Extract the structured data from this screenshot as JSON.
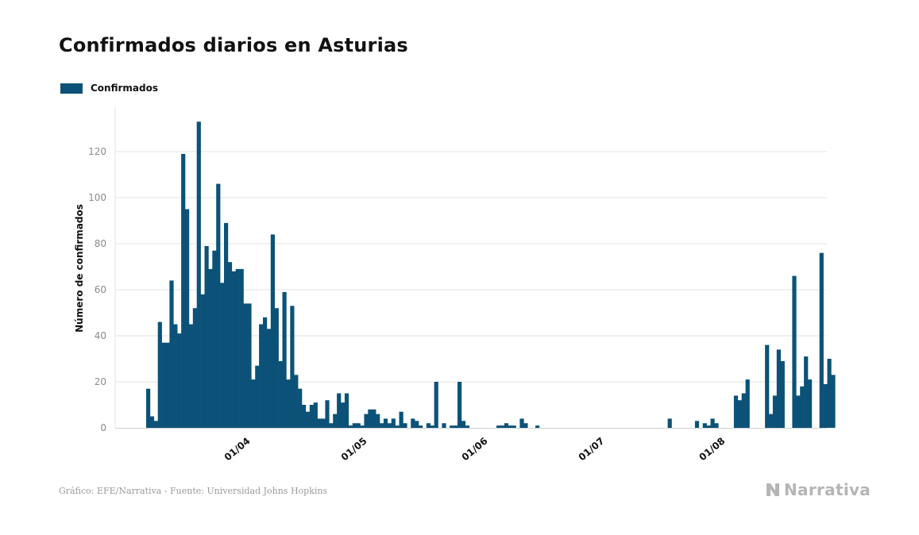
{
  "header": {
    "title": "Confirmados diarios en Asturias"
  },
  "footer": {
    "source": "Gráfico: EFE/Narrativa - Fuente: Universidad Johns Hopkins",
    "brand": "Narrativa"
  },
  "colors": {
    "bar": "#0c5278",
    "grid": "#e3e3e3",
    "axis_tick": "#8a8a8a",
    "brand": "#b5b5b5"
  },
  "chart_data": {
    "type": "bar",
    "title": "Confirmados diarios en Asturias",
    "xlabel": "",
    "ylabel": "Número de confirmados",
    "ylim": [
      0,
      140
    ],
    "yticks": [
      0,
      20,
      40,
      60,
      80,
      100,
      120
    ],
    "grid": true,
    "legend": {
      "placement": "top-left",
      "entries": [
        "Confirmados"
      ]
    },
    "x_ticks": [
      {
        "label": "01/04",
        "date": "2020-04-01"
      },
      {
        "label": "01/05",
        "date": "2020-05-01"
      },
      {
        "label": "01/06",
        "date": "2020-06-01"
      },
      {
        "label": "01/07",
        "date": "2020-07-01"
      },
      {
        "label": "01/08",
        "date": "2020-08-01"
      }
    ],
    "series": [
      {
        "name": "Confirmados",
        "start_date": "2020-03-08",
        "values": [
          17,
          5,
          3,
          46,
          37,
          37,
          64,
          45,
          41,
          119,
          95,
          45,
          52,
          133,
          58,
          79,
          69,
          77,
          106,
          63,
          89,
          72,
          68,
          69,
          69,
          54,
          54,
          21,
          27,
          45,
          48,
          43,
          84,
          52,
          29,
          59,
          21,
          53,
          23,
          17,
          10,
          7,
          10,
          11,
          4,
          4,
          12,
          2,
          6,
          15,
          11,
          15,
          1,
          2,
          2,
          1,
          6,
          8,
          8,
          6,
          2,
          4,
          2,
          4,
          1,
          7,
          2,
          0,
          4,
          3,
          1,
          0,
          2,
          1,
          20,
          0,
          2,
          0,
          1,
          1,
          20,
          3,
          1,
          0,
          0,
          0,
          0,
          0,
          0,
          0,
          1,
          1,
          2,
          1,
          1,
          0,
          4,
          2,
          0,
          0,
          1,
          0,
          0,
          0,
          0,
          0,
          0,
          0,
          0,
          0,
          0,
          0,
          0,
          0,
          0,
          0,
          0,
          0,
          0,
          0,
          0,
          0,
          0,
          0,
          0,
          0,
          0,
          0,
          0,
          0,
          0,
          0,
          0,
          0,
          4,
          0,
          0,
          0,
          0,
          0,
          0,
          3,
          0,
          2,
          1,
          4,
          2,
          0,
          0,
          0,
          0,
          14,
          12,
          15,
          21,
          0,
          0,
          0,
          0,
          36,
          6,
          14,
          34,
          29,
          0,
          0,
          66,
          14,
          18,
          31,
          21,
          0,
          0,
          76,
          19,
          30,
          23
        ]
      }
    ]
  }
}
